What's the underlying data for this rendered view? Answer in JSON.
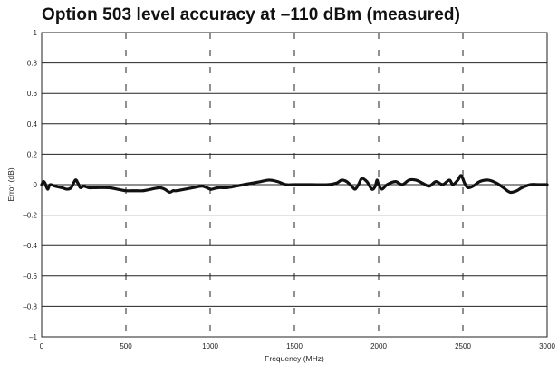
{
  "chart_data": {
    "type": "line",
    "title": "Option 503 level accuracy at –110 dBm (measured)",
    "xlabel": "Frequency (MHz)",
    "ylabel": "Error (dB)",
    "xlim": [
      0,
      3000
    ],
    "ylim": [
      -1,
      1
    ],
    "x_ticks": [
      0,
      500,
      1000,
      1500,
      2000,
      2500,
      3000
    ],
    "x_tick_labels": [
      "0",
      "500",
      "1000",
      "1500",
      "2000",
      "2500",
      "3000"
    ],
    "y_ticks": [
      1,
      0.8,
      0.6,
      0.4,
      0.2,
      0,
      -0.2,
      -0.4,
      -0.6,
      -0.8,
      -1
    ],
    "y_tick_labels": [
      "1",
      "0.8",
      "0.6",
      "0.4",
      "0.2",
      "0",
      "–0.2",
      "–0.4",
      "–0.6",
      "–0.8",
      "–1"
    ],
    "grid": {
      "horizontal": "solid",
      "vertical": "dashed"
    },
    "line_color": "#111111",
    "series": [
      {
        "x": [
          0,
          10,
          20,
          35,
          50,
          80,
          120,
          150,
          175,
          200,
          215,
          230,
          250,
          280,
          320,
          400,
          450,
          500,
          550,
          600,
          650,
          700,
          730,
          760,
          780,
          800,
          850,
          900,
          950,
          980,
          1000,
          1010,
          1050,
          1100,
          1150,
          1200,
          1250,
          1300,
          1350,
          1400,
          1450,
          1500,
          1600,
          1700,
          1750,
          1780,
          1810,
          1840,
          1860,
          1880,
          1900,
          1930,
          1960,
          1980,
          1990,
          2000,
          2020,
          2050,
          2100,
          2140,
          2180,
          2220,
          2260,
          2300,
          2340,
          2380,
          2420,
          2440,
          2470,
          2490,
          2510,
          2530,
          2560,
          2600,
          2650,
          2700,
          2740,
          2780,
          2820,
          2850,
          2900,
          2950,
          3000
        ],
        "y": [
          0.0,
          0.02,
          0.01,
          -0.03,
          0.0,
          -0.01,
          -0.02,
          -0.03,
          -0.02,
          0.03,
          0.01,
          -0.02,
          -0.01,
          -0.02,
          -0.02,
          -0.02,
          -0.03,
          -0.04,
          -0.04,
          -0.04,
          -0.03,
          -0.02,
          -0.03,
          -0.05,
          -0.04,
          -0.04,
          -0.03,
          -0.02,
          -0.01,
          -0.02,
          -0.03,
          -0.03,
          -0.02,
          -0.02,
          -0.01,
          0.0,
          0.01,
          0.02,
          0.03,
          0.02,
          0.0,
          0.0,
          0.0,
          0.0,
          0.01,
          0.03,
          0.02,
          -0.01,
          -0.03,
          0.0,
          0.04,
          0.02,
          -0.03,
          -0.01,
          0.03,
          0.0,
          -0.03,
          0.0,
          0.02,
          0.0,
          0.03,
          0.03,
          0.01,
          -0.01,
          0.02,
          0.0,
          0.03,
          0.0,
          0.03,
          0.06,
          0.01,
          -0.02,
          -0.01,
          0.02,
          0.03,
          0.01,
          -0.02,
          -0.05,
          -0.04,
          -0.02,
          0.0,
          0.0,
          0.0
        ]
      }
    ]
  }
}
